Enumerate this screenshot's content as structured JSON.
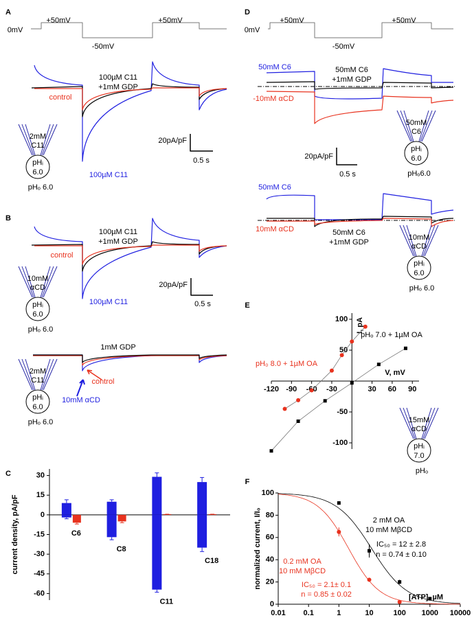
{
  "panels": {
    "A": {
      "label": "A",
      "protocol": [
        "0mV",
        "+50mV",
        "-50mV",
        "+50mV"
      ],
      "drug": "100µM C11",
      "gdp": "+1mM GDP",
      "control": "control",
      "blue": "100µM C11",
      "scale_y": "20pA/pF",
      "scale_x": "0.5 s",
      "pipette": [
        "2mM",
        "C11",
        "pHᵢ",
        "6.0",
        "pHₒ 6.0"
      ]
    },
    "B": {
      "label": "B",
      "drug": "100µM C11",
      "gdp": "+1mM GDP",
      "control": "control",
      "blue": "100µM C11",
      "scale_y": "20pA/pF",
      "scale_x": "0.5 s",
      "pipette": [
        "10mM",
        "αCD",
        "pHᵢ",
        "6.0",
        "pHₒ 6.0"
      ],
      "lower": {
        "gdp": "1mM GDP",
        "control": "control",
        "blue": "10mM αCD",
        "pipette": [
          "2mM",
          "C11",
          "pHᵢ",
          "6.0",
          "pHₒ 6.0"
        ]
      }
    },
    "D": {
      "label": "D",
      "protocol": [
        "0mV",
        "+50mV",
        "-50mV",
        "+50mV"
      ],
      "scale_y": "20pA/pF",
      "scale_x": "0.5 s",
      "upper": {
        "blue": "50mM C6",
        "drug": "50mM C6",
        "gdp": "+1mM GDP",
        "red": "-10mM αCD",
        "pipette": [
          "50mM",
          "C6",
          "pHᵢ",
          "6.0",
          "pHₒ6.0"
        ]
      },
      "lower": {
        "blue": "50mM C6",
        "red": "10mM αCD",
        "drug": "50mM C6",
        "gdp": "+1mM GDP",
        "pipette": [
          "10mM",
          "αCD",
          "pHᵢ",
          "6.0",
          "pHₒ 6.0"
        ]
      }
    }
  },
  "chart_data": [
    {
      "type": "bar",
      "panel_label": "C",
      "ylabel": "current density, pA/pF",
      "categories": [
        "C6",
        "C8",
        "C11",
        "C18"
      ],
      "series": [
        {
          "color": "#1f1fe0",
          "values": [
            9,
            10,
            29,
            25
          ],
          "errors": [
            2.5,
            1.5,
            3,
            3.5
          ]
        },
        {
          "color": "#1f1fe0",
          "values": [
            -2,
            -17,
            -57,
            -25
          ],
          "errors": [
            1,
            2,
            2,
            3
          ]
        },
        {
          "color": "#e8321e",
          "values": [
            -6,
            -5,
            0.5,
            0.5
          ],
          "errors": [
            1,
            1,
            0,
            0
          ]
        }
      ],
      "ylim": [
        -65,
        35
      ],
      "yticks": [
        30,
        15,
        0,
        -15,
        -30,
        -45,
        -60
      ]
    },
    {
      "type": "line",
      "panel_label": "E",
      "xlabel": "V, mV",
      "ylabel": "I, pA",
      "series": [
        {
          "color": "#000000",
          "marker": "square",
          "x": [
            -120,
            -80,
            -40,
            0,
            40,
            80
          ],
          "values": [
            -113,
            -65,
            -32,
            -3,
            27,
            53
          ]
        },
        {
          "color": "#e8321e",
          "marker": "circle",
          "x": [
            -100,
            -80,
            -60,
            -30,
            -15,
            0,
            20
          ],
          "values": [
            -45,
            -31,
            -15,
            17,
            42,
            64,
            88
          ]
        }
      ],
      "annotations": [
        "pHₒ 7.0 + 1µM OA",
        "pH₀ 8.0 + 1µM OA"
      ],
      "inset": [
        "15mM",
        "αCD",
        "pHᵢ",
        "7.0",
        "pHₒ"
      ],
      "xlim": [
        -120,
        100
      ],
      "ylim": [
        -110,
        110
      ],
      "xticks": [
        -120,
        -90,
        -60,
        -30,
        30,
        60,
        90
      ],
      "yticks": [
        -100,
        -50,
        50,
        100
      ]
    },
    {
      "type": "scatter",
      "panel_label": "F",
      "xlabel": "[ATP], µM",
      "ylabel": "normalized current, I/I₀",
      "xlog": true,
      "series": [
        {
          "color": "#000000",
          "marker": "square",
          "x": [
            1,
            10,
            100,
            1000
          ],
          "values": [
            91,
            48,
            20,
            5
          ],
          "errors": [
            1.5,
            6,
            2,
            1
          ],
          "ic50": 12,
          "hill": 0.74
        },
        {
          "color": "#e8321e",
          "marker": "circle",
          "x": [
            1,
            10,
            100
          ],
          "values": [
            65,
            22,
            2
          ],
          "errors": [
            4,
            1,
            0.5
          ],
          "ic50": 2.1,
          "hill": 0.85
        }
      ],
      "annotations": [
        "2 mM OA",
        "10 mM MβCD",
        "IC₅₀ = 12 ± 2.8",
        "n = 0.74 ± 0.10",
        "0.2 mM OA",
        "10 mM MβCD",
        "IC₅₀ = 2.1± 0.1",
        "n = 0.85 ± 0.02"
      ],
      "xlim": [
        0.01,
        10000
      ],
      "ylim": [
        0,
        100
      ],
      "xticks": [
        0.01,
        0.1,
        1,
        10,
        100,
        1000,
        10000
      ],
      "yticks": [
        0,
        20,
        40,
        60,
        80,
        100
      ]
    }
  ]
}
